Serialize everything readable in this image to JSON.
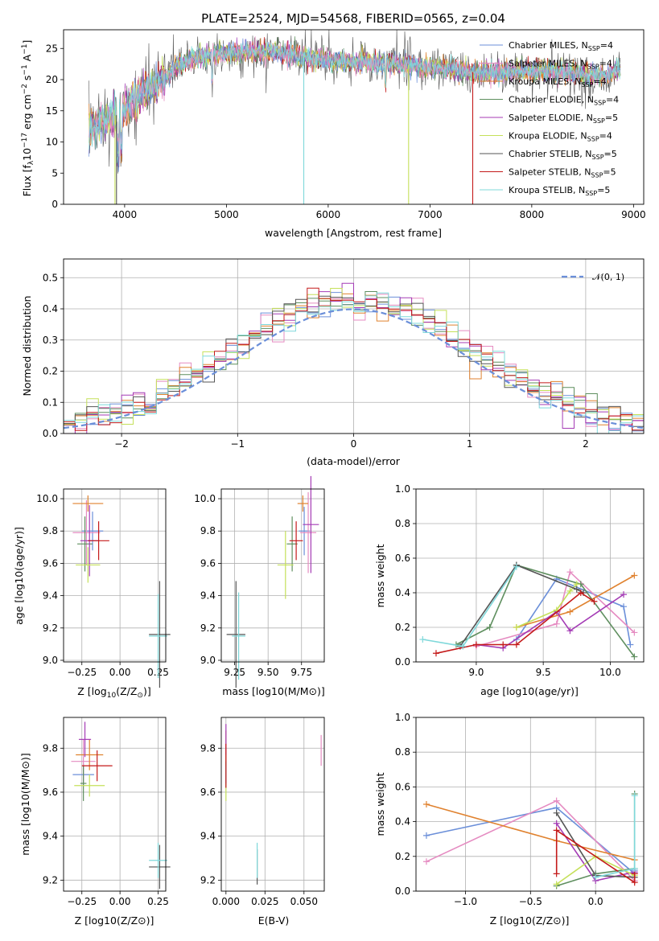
{
  "colors": [
    "#6b8fd9",
    "#e58bc1",
    "#e0822f",
    "#5f8f5f",
    "#a43bb5",
    "#c5e05a",
    "#555555",
    "#c41a1a",
    "#7fd8da"
  ],
  "spectrum": {
    "title": "PLATE=2524, MJD=54568, FIBERID=0565, z=0.04",
    "xlabel": "wavelength [Angstrom, rest frame]",
    "ylabel": "Flux [f",
    "ylabel_sub": "λ",
    "ylabel_rest": "10",
    "ylabel_exp": "−17",
    "ylabel_tail": " erg cm",
    "ylabel_tail_exp": "−2",
    "ylabel_s": " s",
    "ylabel_s_exp": "−1",
    "ylabel_A": " A",
    "ylabel_A_exp": "−1",
    "ylabel_end": "]",
    "legend": [
      {
        "name": "Chabrier MILES, N",
        "sub": "SSP",
        "val": "=4"
      },
      {
        "name": "Salpeter MILES, N",
        "sub": "SSP",
        "val": "=4"
      },
      {
        "name": "Kroupa MILES, N",
        "sub": "SSP",
        "val": "=4"
      },
      {
        "name": "Chabrier ELODIE, N",
        "sub": "SSP",
        "val": "=4"
      },
      {
        "name": "Salpeter ELODIE, N",
        "sub": "SSP",
        "val": "=5"
      },
      {
        "name": "Kroupa ELODIE, N",
        "sub": "SSP",
        "val": "=4"
      },
      {
        "name": "Chabrier STELIB, N",
        "sub": "SSP",
        "val": "=5"
      },
      {
        "name": "Salpeter STELIB, N",
        "sub": "SSP",
        "val": "=5"
      },
      {
        "name": "Kroupa STELIB, N",
        "sub": "SSP",
        "val": "=5"
      }
    ]
  },
  "residuals": {
    "xlabel": "(data-model)/error",
    "ylabel": "Normed distribution",
    "legend": "𝒩(0, 1)"
  },
  "panels": {
    "age_Z": {
      "xlabel": "Z [log",
      "xlabel_sub": "10",
      "xlabel_rest": "(Z/Z",
      "xlabel_sun": "⊙",
      "xlabel_end": ")]",
      "ylabel": "age  [log10(age/yr)]"
    },
    "age_mass": {
      "xlabel": "mass [log10(M/M⊙)]"
    },
    "weight_age": {
      "xlabel": "age  [log10(age/yr)]",
      "ylabel": "mass weight"
    },
    "mass_Z": {
      "xlabel": "Z [log10(Z/Z⊙)]",
      "ylabel": "mass [log10(M/M⊙)]"
    },
    "mass_ebv": {
      "xlabel": "E(B-V)"
    },
    "weight_Z": {
      "xlabel": "Z [log10(Z/Z⊙)]",
      "ylabel": "mass weight"
    }
  },
  "chart_data": [
    {
      "type": "line",
      "title": "PLATE=2524, MJD=54568, FIBERID=0565, z=0.04",
      "xlabel": "wavelength [Angstrom, rest frame]",
      "ylabel": "Flux [fλ10−17 erg cm−2 s−1 A−1]",
      "xlim": [
        3400,
        9100
      ],
      "ylim": [
        0,
        28
      ],
      "xticks": [
        4000,
        5000,
        6000,
        7000,
        8000,
        9000
      ],
      "yticks": [
        0,
        5,
        10,
        15,
        20,
        25
      ],
      "continuum": {
        "x": [
          3650,
          3800,
          3950,
          4100,
          4300,
          4500,
          4700,
          4900,
          5200,
          5500,
          5800,
          6100,
          6400,
          6700,
          7000,
          7300,
          7500,
          7800,
          8100,
          8400,
          8700,
          8850
        ],
        "y": [
          12,
          13.5,
          14.5,
          17,
          19,
          22,
          23.5,
          24.2,
          24.5,
          24.5,
          23.5,
          23,
          22.8,
          22.5,
          22,
          21.5,
          21,
          21.3,
          21.5,
          21,
          20.5,
          21.5
        ]
      },
      "series": [
        "Chabrier MILES, NSSP=4",
        "Salpeter MILES, NSSP=4",
        "Kroupa MILES, NSSP=4",
        "Chabrier ELODIE, NSSP=4",
        "Salpeter ELODIE, NSSP=5",
        "Kroupa ELODIE, NSSP=4",
        "Chabrier STELIB, NSSP=5",
        "Salpeter STELIB, NSSP=5",
        "Kroupa STELIB, NSSP=5"
      ],
      "grid": false,
      "legend": "upper-right"
    },
    {
      "type": "bar",
      "xlabel": "(data-model)/error",
      "ylabel": "Normed distribution",
      "xlim": [
        -2.5,
        2.5
      ],
      "ylim": [
        0,
        0.56
      ],
      "xticks": [
        -2,
        -1,
        0,
        1,
        2
      ],
      "yticks": [
        0.0,
        0.1,
        0.2,
        0.3,
        0.4,
        0.5
      ],
      "bin_width": 0.1,
      "reference": "N(0,1)",
      "grid": true,
      "legend": "upper-right"
    },
    {
      "type": "scatter",
      "name": "age vs Z",
      "xlim": [
        -0.37,
        0.3
      ],
      "ylim": [
        8.99,
        10.06
      ],
      "xticks": [
        -0.25,
        0.0,
        0.25
      ],
      "yticks": [
        9.0,
        9.2,
        9.4,
        9.6,
        9.8,
        10.0
      ],
      "points": [
        {
          "x": -0.18,
          "y": 9.8,
          "xerr": 0.07,
          "yerr": 0.12
        },
        {
          "x": -0.22,
          "y": 9.79,
          "xerr": 0.09,
          "yerr": 0.2
        },
        {
          "x": -0.21,
          "y": 9.97,
          "xerr": 0.1,
          "yerr": 0.05
        },
        {
          "x": -0.23,
          "y": 9.72,
          "xerr": 0.05,
          "yerr": 0.17
        },
        {
          "x": -0.2,
          "y": 9.74,
          "xerr": 0.06,
          "yerr": 0.22
        },
        {
          "x": -0.21,
          "y": 9.59,
          "xerr": 0.08,
          "yerr": 0.11
        },
        {
          "x": 0.26,
          "y": 9.16,
          "xerr": 0.07,
          "yerr": 0.33
        },
        {
          "x": -0.14,
          "y": 9.74,
          "xerr": 0.07,
          "yerr": 0.12
        },
        {
          "x": 0.25,
          "y": 9.15,
          "xerr": 0.06,
          "yerr": 0.26
        }
      ]
    },
    {
      "type": "scatter",
      "name": "age vs mass",
      "xlim": [
        9.15,
        9.92
      ],
      "ylim": [
        8.99,
        10.06
      ],
      "xticks": [
        9.25,
        9.5,
        9.75
      ],
      "yticks": [
        9.0,
        9.2,
        9.4,
        9.6,
        9.8,
        10.0
      ],
      "points": [
        {
          "x": 9.77,
          "y": 9.8,
          "xerr": 0.04,
          "yerr": 0.15
        },
        {
          "x": 9.8,
          "y": 9.79,
          "xerr": 0.06,
          "yerr": 0.25
        },
        {
          "x": 9.76,
          "y": 9.97,
          "xerr": 0.04,
          "yerr": 0.05
        },
        {
          "x": 9.68,
          "y": 9.72,
          "xerr": 0.04,
          "yerr": 0.17
        },
        {
          "x": 9.82,
          "y": 9.84,
          "xerr": 0.06,
          "yerr": 0.3
        },
        {
          "x": 9.63,
          "y": 9.59,
          "xerr": 0.06,
          "yerr": 0.21
        },
        {
          "x": 9.26,
          "y": 9.16,
          "xerr": 0.07,
          "yerr": 0.33
        },
        {
          "x": 9.71,
          "y": 9.74,
          "xerr": 0.05,
          "yerr": 0.12
        },
        {
          "x": 9.28,
          "y": 9.15,
          "xerr": 0.05,
          "yerr": 0.27
        }
      ]
    },
    {
      "type": "line",
      "name": "mass weight vs age",
      "xlim": [
        8.55,
        10.25
      ],
      "ylim": [
        0,
        1
      ],
      "xticks": [
        9.0,
        9.5,
        10.0
      ],
      "yticks": [
        0.0,
        0.2,
        0.4,
        0.6,
        0.8,
        1.0
      ],
      "series": [
        {
          "x": [
            9.3,
            9.6,
            10.1,
            10.15
          ],
          "y": [
            0.13,
            0.48,
            0.32,
            0.1
          ]
        },
        {
          "x": [
            9.0,
            9.6,
            9.7,
            10.18
          ],
          "y": [
            0.09,
            0.22,
            0.52,
            0.17
          ]
        },
        {
          "x": [
            9.3,
            9.7,
            10.18
          ],
          "y": [
            0.2,
            0.29,
            0.5
          ]
        },
        {
          "x": [
            8.85,
            9.1,
            9.3,
            9.78,
            10.18
          ],
          "y": [
            0.1,
            0.2,
            0.56,
            0.45,
            0.03
          ]
        },
        {
          "x": [
            9.0,
            9.2,
            9.6,
            9.7,
            10.1
          ],
          "y": [
            0.1,
            0.08,
            0.29,
            0.18,
            0.39
          ]
        },
        {
          "x": [
            9.3,
            9.6,
            9.7,
            9.75
          ],
          "y": [
            0.2,
            0.3,
            0.41,
            0.45
          ]
        },
        {
          "x": [
            8.88,
            9.3,
            9.75,
            9.8
          ],
          "y": [
            0.09,
            0.56,
            0.42,
            0.4
          ]
        },
        {
          "x": [
            8.7,
            9.0,
            9.2,
            9.3,
            9.78,
            9.88
          ],
          "y": [
            0.05,
            0.1,
            0.1,
            0.1,
            0.4,
            0.35
          ]
        },
        {
          "x": [
            8.6,
            8.9,
            9.3
          ],
          "y": [
            0.13,
            0.09,
            0.55
          ]
        }
      ]
    },
    {
      "type": "scatter",
      "name": "mass vs Z",
      "xlim": [
        -0.37,
        0.3
      ],
      "ylim": [
        9.15,
        9.94
      ],
      "xticks": [
        -0.25,
        0.0,
        0.25
      ],
      "yticks": [
        9.2,
        9.4,
        9.6,
        9.8
      ],
      "points": [
        {
          "x": -0.24,
          "y": 9.68,
          "xerr": 0.07,
          "yerr": 0.05
        },
        {
          "x": -0.24,
          "y": 9.74,
          "xerr": 0.08,
          "yerr": 0.1
        },
        {
          "x": -0.2,
          "y": 9.77,
          "xerr": 0.09,
          "yerr": 0.07
        },
        {
          "x": -0.24,
          "y": 9.64,
          "xerr": 0.02,
          "yerr": 0.08
        },
        {
          "x": -0.23,
          "y": 9.84,
          "xerr": 0.04,
          "yerr": 0.08
        },
        {
          "x": -0.2,
          "y": 9.63,
          "xerr": 0.1,
          "yerr": 0.05
        },
        {
          "x": 0.26,
          "y": 9.26,
          "xerr": 0.07,
          "yerr": 0.1
        },
        {
          "x": -0.15,
          "y": 9.72,
          "xerr": 0.1,
          "yerr": 0.07
        },
        {
          "x": 0.25,
          "y": 9.29,
          "xerr": 0.06,
          "yerr": 0.08
        }
      ]
    },
    {
      "type": "scatter",
      "name": "mass vs E(B-V)",
      "xlim": [
        -0.003,
        0.063
      ],
      "ylim": [
        9.15,
        9.94
      ],
      "xticks": [
        0.0,
        0.025,
        0.05
      ],
      "yticks": [
        9.2,
        9.4,
        9.6,
        9.8
      ],
      "points": [
        {
          "x": 0.0,
          "y": 9.7,
          "xerr": 0,
          "yerr": 0.08
        },
        {
          "x": 0.061,
          "y": 9.79,
          "xerr": 0,
          "yerr": 0.07
        },
        {
          "x": 0.0,
          "y": 9.8,
          "xerr": 0,
          "yerr": 0.08
        },
        {
          "x": 0.0,
          "y": 9.68,
          "xerr": 0,
          "yerr": 0.06
        },
        {
          "x": 0.0,
          "y": 9.84,
          "xerr": 0,
          "yerr": 0.07
        },
        {
          "x": 0.0,
          "y": 9.6,
          "xerr": 0,
          "yerr": 0.04
        },
        {
          "x": 0.02,
          "y": 9.26,
          "xerr": 0,
          "yerr": 0.08
        },
        {
          "x": 0.0,
          "y": 9.72,
          "xerr": 0,
          "yerr": 0.1
        },
        {
          "x": 0.02,
          "y": 9.29,
          "xerr": 0,
          "yerr": 0.08
        }
      ]
    },
    {
      "type": "line",
      "name": "mass weight vs Z",
      "xlim": [
        -1.38,
        0.37
      ],
      "ylim": [
        0,
        1
      ],
      "xticks": [
        -1.0,
        -0.5,
        0.0
      ],
      "yticks": [
        0.0,
        0.2,
        0.4,
        0.6,
        0.8,
        1.0
      ],
      "series": [
        {
          "x": [
            -1.3,
            -0.3,
            0.3,
            0.3
          ],
          "y": [
            0.32,
            0.48,
            0.1,
            0.12
          ]
        },
        {
          "x": [
            -1.3,
            -0.3,
            0.3
          ],
          "y": [
            0.17,
            0.52,
            0.06
          ]
        },
        {
          "x": [
            -1.3,
            -0.3,
            0.3
          ],
          "y": [
            0.5,
            0.29,
            0.18
          ]
        },
        {
          "x": [
            -0.3,
            0.0,
            0.3,
            0.3
          ],
          "y": [
            0.03,
            0.1,
            0.13,
            0.56
          ]
        },
        {
          "x": [
            -0.3,
            0.0,
            0.3
          ],
          "y": [
            0.39,
            0.06,
            0.11
          ]
        },
        {
          "x": [
            -0.3,
            0.0,
            0.3
          ],
          "y": [
            0.04,
            0.2,
            0.09
          ]
        },
        {
          "x": [
            -0.3,
            0.0,
            0.3
          ],
          "y": [
            0.45,
            0.09,
            0.08
          ]
        },
        {
          "x": [
            -0.3,
            -0.3,
            0.3,
            0.3
          ],
          "y": [
            0.1,
            0.35,
            0.05,
            0.1
          ]
        },
        {
          "x": [
            0.0,
            0.3,
            0.3
          ],
          "y": [
            0.08,
            0.13,
            0.55
          ]
        }
      ]
    }
  ]
}
